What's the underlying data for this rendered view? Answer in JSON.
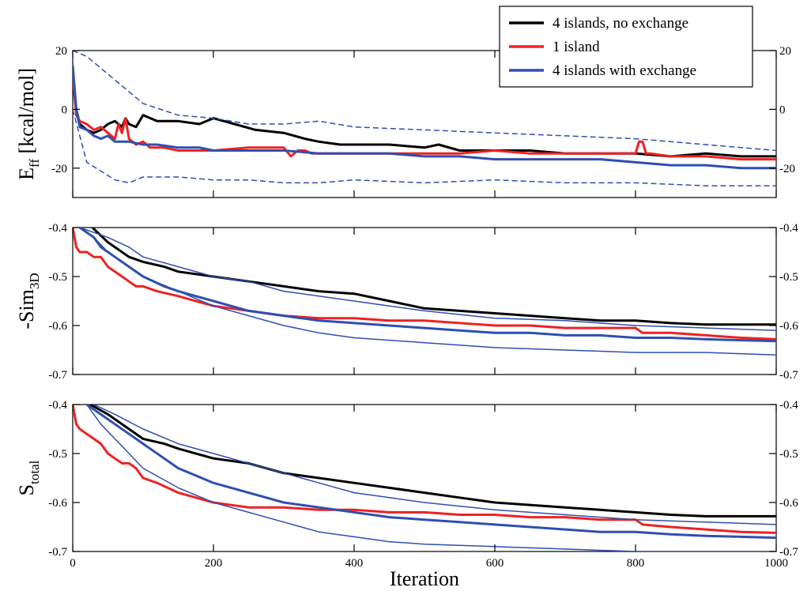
{
  "chart_data": {
    "type": "line",
    "xlabel": "Iteration",
    "xlim": [
      0,
      1000
    ],
    "xticks": [
      0,
      200,
      400,
      600,
      800,
      1000
    ],
    "xtick_labels": [
      "0",
      "200",
      "400",
      "600",
      "800",
      "1000"
    ],
    "legend": {
      "placement": "top-right",
      "entries": [
        {
          "name": "4 islands, no exchange",
          "color": "#000000"
        },
        {
          "name": "1 island",
          "color": "#ee2222"
        },
        {
          "name": "4 islands with exchange",
          "color": "#2f4fb0"
        }
      ]
    },
    "panels": [
      {
        "id": "eff",
        "ylabel": "E",
        "ylabel_sub": "ff",
        "ylabel_suffix": " [kcal/mol]",
        "ylim": [
          -30,
          20
        ],
        "yticks": [
          20,
          0,
          -20
        ],
        "ytick_labels_left": [
          "20",
          "0",
          "-20"
        ],
        "ytick_labels_right": [
          "20",
          "0",
          "-20"
        ],
        "series": [
          {
            "name": "4 islands, no exchange",
            "color": "#000000",
            "width": 3,
            "x": [
              0,
              5,
              10,
              20,
              30,
              40,
              50,
              60,
              70,
              75,
              80,
              90,
              100,
              120,
              150,
              180,
              200,
              230,
              260,
              300,
              330,
              350,
              380,
              400,
              450,
              500,
              520,
              550,
              600,
              650,
              700,
              750,
              800,
              850,
              900,
              950,
              1000
            ],
            "y": [
              10,
              0,
              -5,
              -7,
              -8,
              -7,
              -5,
              -4,
              -6,
              -3,
              -5,
              -6,
              -2,
              -4,
              -4,
              -5,
              -3,
              -5,
              -7,
              -8,
              -10,
              -11,
              -12,
              -12,
              -12,
              -13,
              -12,
              -14,
              -14,
              -14,
              -15,
              -15,
              -15,
              -16,
              -15,
              -16,
              -16
            ]
          },
          {
            "name": "1 island",
            "color": "#ee2222",
            "width": 3,
            "x": [
              0,
              5,
              10,
              20,
              30,
              40,
              50,
              60,
              65,
              70,
              75,
              80,
              90,
              100,
              110,
              130,
              150,
              200,
              250,
              300,
              310,
              320,
              330,
              340,
              360,
              400,
              450,
              500,
              550,
              600,
              650,
              700,
              750,
              800,
              805,
              810,
              815,
              820,
              850,
              900,
              950,
              1000
            ],
            "y": [
              12,
              -2,
              -4,
              -5,
              -7,
              -6,
              -8,
              -10,
              -5,
              -8,
              -3,
              -10,
              -12,
              -11,
              -13,
              -13,
              -14,
              -14,
              -13,
              -13,
              -16,
              -14,
              -14,
              -15,
              -15,
              -15,
              -15,
              -15,
              -15,
              -14,
              -15,
              -15,
              -15,
              -15,
              -11,
              -11,
              -15,
              -15,
              -16,
              -16,
              -17,
              -17
            ]
          },
          {
            "name": "4 islands with exchange",
            "color": "#2f4fb0",
            "width": 3,
            "x": [
              0,
              5,
              10,
              20,
              30,
              40,
              50,
              60,
              80,
              100,
              120,
              150,
              180,
              200,
              250,
              300,
              350,
              400,
              450,
              500,
              550,
              600,
              650,
              700,
              750,
              800,
              850,
              900,
              950,
              1000
            ],
            "y": [
              15,
              0,
              -6,
              -7,
              -9,
              -10,
              -9,
              -11,
              -11,
              -12,
              -12,
              -13,
              -13,
              -14,
              -14,
              -14,
              -15,
              -15,
              -15,
              -16,
              -16,
              -17,
              -17,
              -17,
              -17,
              -18,
              -19,
              -19,
              -20,
              -20
            ]
          },
          {
            "name": "",
            "color": "#2f4fb0",
            "width": 1.5,
            "dash": "7 4",
            "x": [
              0,
              20,
              40,
              60,
              80,
              100,
              150,
              200,
              250,
              300,
              350,
              400,
              500,
              600,
              700,
              800,
              900,
              1000
            ],
            "y": [
              20,
              18,
              14,
              10,
              6,
              2,
              -2,
              -3,
              -5,
              -5,
              -4,
              -6,
              -7,
              -8,
              -9,
              -10,
              -12,
              -14
            ]
          },
          {
            "name": "",
            "color": "#2f4fb0",
            "width": 1.5,
            "dash": "7 4",
            "x": [
              0,
              20,
              40,
              60,
              80,
              100,
              150,
              200,
              250,
              300,
              350,
              400,
              500,
              600,
              700,
              800,
              900,
              1000
            ],
            "y": [
              0,
              -18,
              -21,
              -24,
              -25,
              -23,
              -23,
              -24,
              -24,
              -25,
              -25,
              -24,
              -25,
              -24,
              -25,
              -25,
              -26,
              -26
            ]
          }
        ]
      },
      {
        "id": "sim3d",
        "ylabel": "-Sim",
        "ylabel_sub": "3D",
        "ylabel_suffix": "",
        "ylim": [
          -0.7,
          -0.4
        ],
        "yticks": [
          -0.4,
          -0.5,
          -0.6,
          -0.7
        ],
        "ytick_labels_left": [
          "-0.4",
          "-0.5",
          "-0.6",
          "-0.7"
        ],
        "ytick_labels_right": [
          "-0.4",
          "-0.5",
          "-0.6",
          "-0.7"
        ],
        "series": [
          {
            "name": "4 islands, no exchange",
            "color": "#000000",
            "width": 3,
            "x": [
              28,
              50,
              80,
              100,
              130,
              150,
              200,
              250,
              300,
              350,
              400,
              450,
              500,
              550,
              600,
              650,
              700,
              750,
              800,
              850,
              900,
              950,
              1000
            ],
            "y": [
              -0.4,
              -0.43,
              -0.46,
              -0.47,
              -0.48,
              -0.49,
              -0.5,
              -0.51,
              -0.52,
              -0.53,
              -0.535,
              -0.55,
              -0.565,
              -0.57,
              -0.575,
              -0.58,
              -0.585,
              -0.59,
              -0.59,
              -0.595,
              -0.598,
              -0.598,
              -0.598
            ]
          },
          {
            "name": "1 island",
            "color": "#ee2222",
            "width": 3,
            "x": [
              0,
              5,
              10,
              20,
              30,
              40,
              50,
              60,
              70,
              80,
              90,
              100,
              120,
              150,
              200,
              250,
              300,
              350,
              400,
              450,
              500,
              550,
              600,
              650,
              700,
              750,
              800,
              810,
              850,
              900,
              950,
              1000
            ],
            "y": [
              -0.4,
              -0.44,
              -0.45,
              -0.45,
              -0.46,
              -0.46,
              -0.48,
              -0.49,
              -0.5,
              -0.51,
              -0.52,
              -0.52,
              -0.53,
              -0.54,
              -0.56,
              -0.57,
              -0.58,
              -0.585,
              -0.585,
              -0.59,
              -0.59,
              -0.595,
              -0.6,
              -0.6,
              -0.605,
              -0.605,
              -0.605,
              -0.615,
              -0.615,
              -0.62,
              -0.625,
              -0.628
            ]
          },
          {
            "name": "4 islands with exchange",
            "color": "#2f4fb0",
            "width": 3,
            "x": [
              10,
              20,
              30,
              40,
              50,
              60,
              80,
              100,
              130,
              150,
              200,
              250,
              300,
              350,
              400,
              450,
              500,
              550,
              600,
              650,
              700,
              750,
              800,
              850,
              900,
              950,
              1000
            ],
            "y": [
              -0.4,
              -0.41,
              -0.42,
              -0.44,
              -0.45,
              -0.46,
              -0.48,
              -0.5,
              -0.52,
              -0.53,
              -0.55,
              -0.57,
              -0.58,
              -0.59,
              -0.595,
              -0.6,
              -0.605,
              -0.61,
              -0.615,
              -0.615,
              -0.62,
              -0.62,
              -0.625,
              -0.625,
              -0.628,
              -0.63,
              -0.632
            ]
          },
          {
            "name": "",
            "color": "#2f4fb0",
            "width": 1.5,
            "x": [
              10,
              30,
              50,
              80,
              100,
              150,
              200,
              250,
              300,
              350,
              400,
              450,
              500,
              600,
              700,
              800,
              900,
              1000
            ],
            "y": [
              -0.4,
              -0.41,
              -0.42,
              -0.44,
              -0.46,
              -0.48,
              -0.5,
              -0.51,
              -0.53,
              -0.54,
              -0.55,
              -0.56,
              -0.57,
              -0.585,
              -0.59,
              -0.6,
              -0.605,
              -0.61
            ]
          },
          {
            "name": "",
            "color": "#2f4fb0",
            "width": 1.5,
            "x": [
              10,
              30,
              50,
              80,
              100,
              150,
              200,
              250,
              300,
              350,
              400,
              450,
              500,
              600,
              700,
              800,
              900,
              1000
            ],
            "y": [
              -0.4,
              -0.42,
              -0.45,
              -0.48,
              -0.5,
              -0.53,
              -0.56,
              -0.58,
              -0.6,
              -0.615,
              -0.625,
              -0.63,
              -0.635,
              -0.645,
              -0.65,
              -0.655,
              -0.655,
              -0.66
            ]
          }
        ]
      },
      {
        "id": "stotal",
        "ylabel": "S",
        "ylabel_sub": "total",
        "ylabel_suffix": "",
        "ylim": [
          -0.7,
          -0.4
        ],
        "yticks": [
          -0.4,
          -0.5,
          -0.6,
          -0.7
        ],
        "ytick_labels_left": [
          "-0.4",
          "-0.5",
          "-0.6",
          "-0.7"
        ],
        "ytick_labels_right": [
          "-0.4",
          "-0.5",
          "-0.6",
          "-0.7"
        ],
        "series": [
          {
            "name": "4 islands, no exchange",
            "color": "#000000",
            "width": 3,
            "x": [
              25,
              50,
              80,
              100,
              130,
              150,
              200,
              250,
              300,
              350,
              400,
              450,
              500,
              550,
              600,
              650,
              700,
              750,
              800,
              850,
              900,
              950,
              1000
            ],
            "y": [
              -0.4,
              -0.42,
              -0.45,
              -0.47,
              -0.48,
              -0.49,
              -0.51,
              -0.52,
              -0.54,
              -0.55,
              -0.56,
              -0.57,
              -0.58,
              -0.59,
              -0.6,
              -0.605,
              -0.61,
              -0.615,
              -0.62,
              -0.625,
              -0.628,
              -0.628,
              -0.628
            ]
          },
          {
            "name": "1 island",
            "color": "#ee2222",
            "width": 3,
            "x": [
              0,
              5,
              10,
              20,
              30,
              40,
              50,
              60,
              70,
              80,
              90,
              100,
              120,
              150,
              200,
              250,
              300,
              350,
              400,
              450,
              500,
              550,
              600,
              650,
              700,
              750,
              800,
              810,
              850,
              900,
              950,
              1000
            ],
            "y": [
              -0.4,
              -0.44,
              -0.45,
              -0.46,
              -0.47,
              -0.48,
              -0.5,
              -0.51,
              -0.52,
              -0.52,
              -0.53,
              -0.55,
              -0.56,
              -0.58,
              -0.6,
              -0.61,
              -0.61,
              -0.615,
              -0.615,
              -0.62,
              -0.62,
              -0.625,
              -0.625,
              -0.63,
              -0.63,
              -0.635,
              -0.635,
              -0.645,
              -0.65,
              -0.655,
              -0.66,
              -0.662
            ]
          },
          {
            "name": "4 islands with exchange",
            "color": "#2f4fb0",
            "width": 3,
            "x": [
              20,
              30,
              40,
              50,
              60,
              80,
              100,
              130,
              150,
              200,
              250,
              300,
              350,
              400,
              450,
              500,
              550,
              600,
              650,
              700,
              750,
              800,
              850,
              900,
              950,
              1000
            ],
            "y": [
              -0.4,
              -0.41,
              -0.42,
              -0.43,
              -0.44,
              -0.46,
              -0.48,
              -0.51,
              -0.53,
              -0.56,
              -0.58,
              -0.6,
              -0.61,
              -0.62,
              -0.63,
              -0.635,
              -0.64,
              -0.645,
              -0.65,
              -0.655,
              -0.66,
              -0.66,
              -0.665,
              -0.668,
              -0.67,
              -0.672
            ]
          },
          {
            "name": "",
            "color": "#2f4fb0",
            "width": 1.5,
            "x": [
              30,
              60,
              100,
              150,
              200,
              250,
              300,
              350,
              400,
              450,
              500,
              600,
              700,
              800,
              900,
              1000
            ],
            "y": [
              -0.4,
              -0.42,
              -0.45,
              -0.48,
              -0.5,
              -0.52,
              -0.54,
              -0.56,
              -0.58,
              -0.59,
              -0.6,
              -0.615,
              -0.625,
              -0.635,
              -0.64,
              -0.645
            ]
          },
          {
            "name": "",
            "color": "#2f4fb0",
            "width": 1.5,
            "x": [
              20,
              40,
              60,
              80,
              100,
              150,
              200,
              250,
              300,
              350,
              400,
              450,
              500,
              600,
              700,
              800,
              900,
              1000
            ],
            "y": [
              -0.4,
              -0.44,
              -0.47,
              -0.5,
              -0.53,
              -0.57,
              -0.6,
              -0.62,
              -0.64,
              -0.66,
              -0.67,
              -0.68,
              -0.685,
              -0.69,
              -0.695,
              -0.7,
              -0.7,
              -0.7
            ]
          }
        ]
      }
    ]
  }
}
